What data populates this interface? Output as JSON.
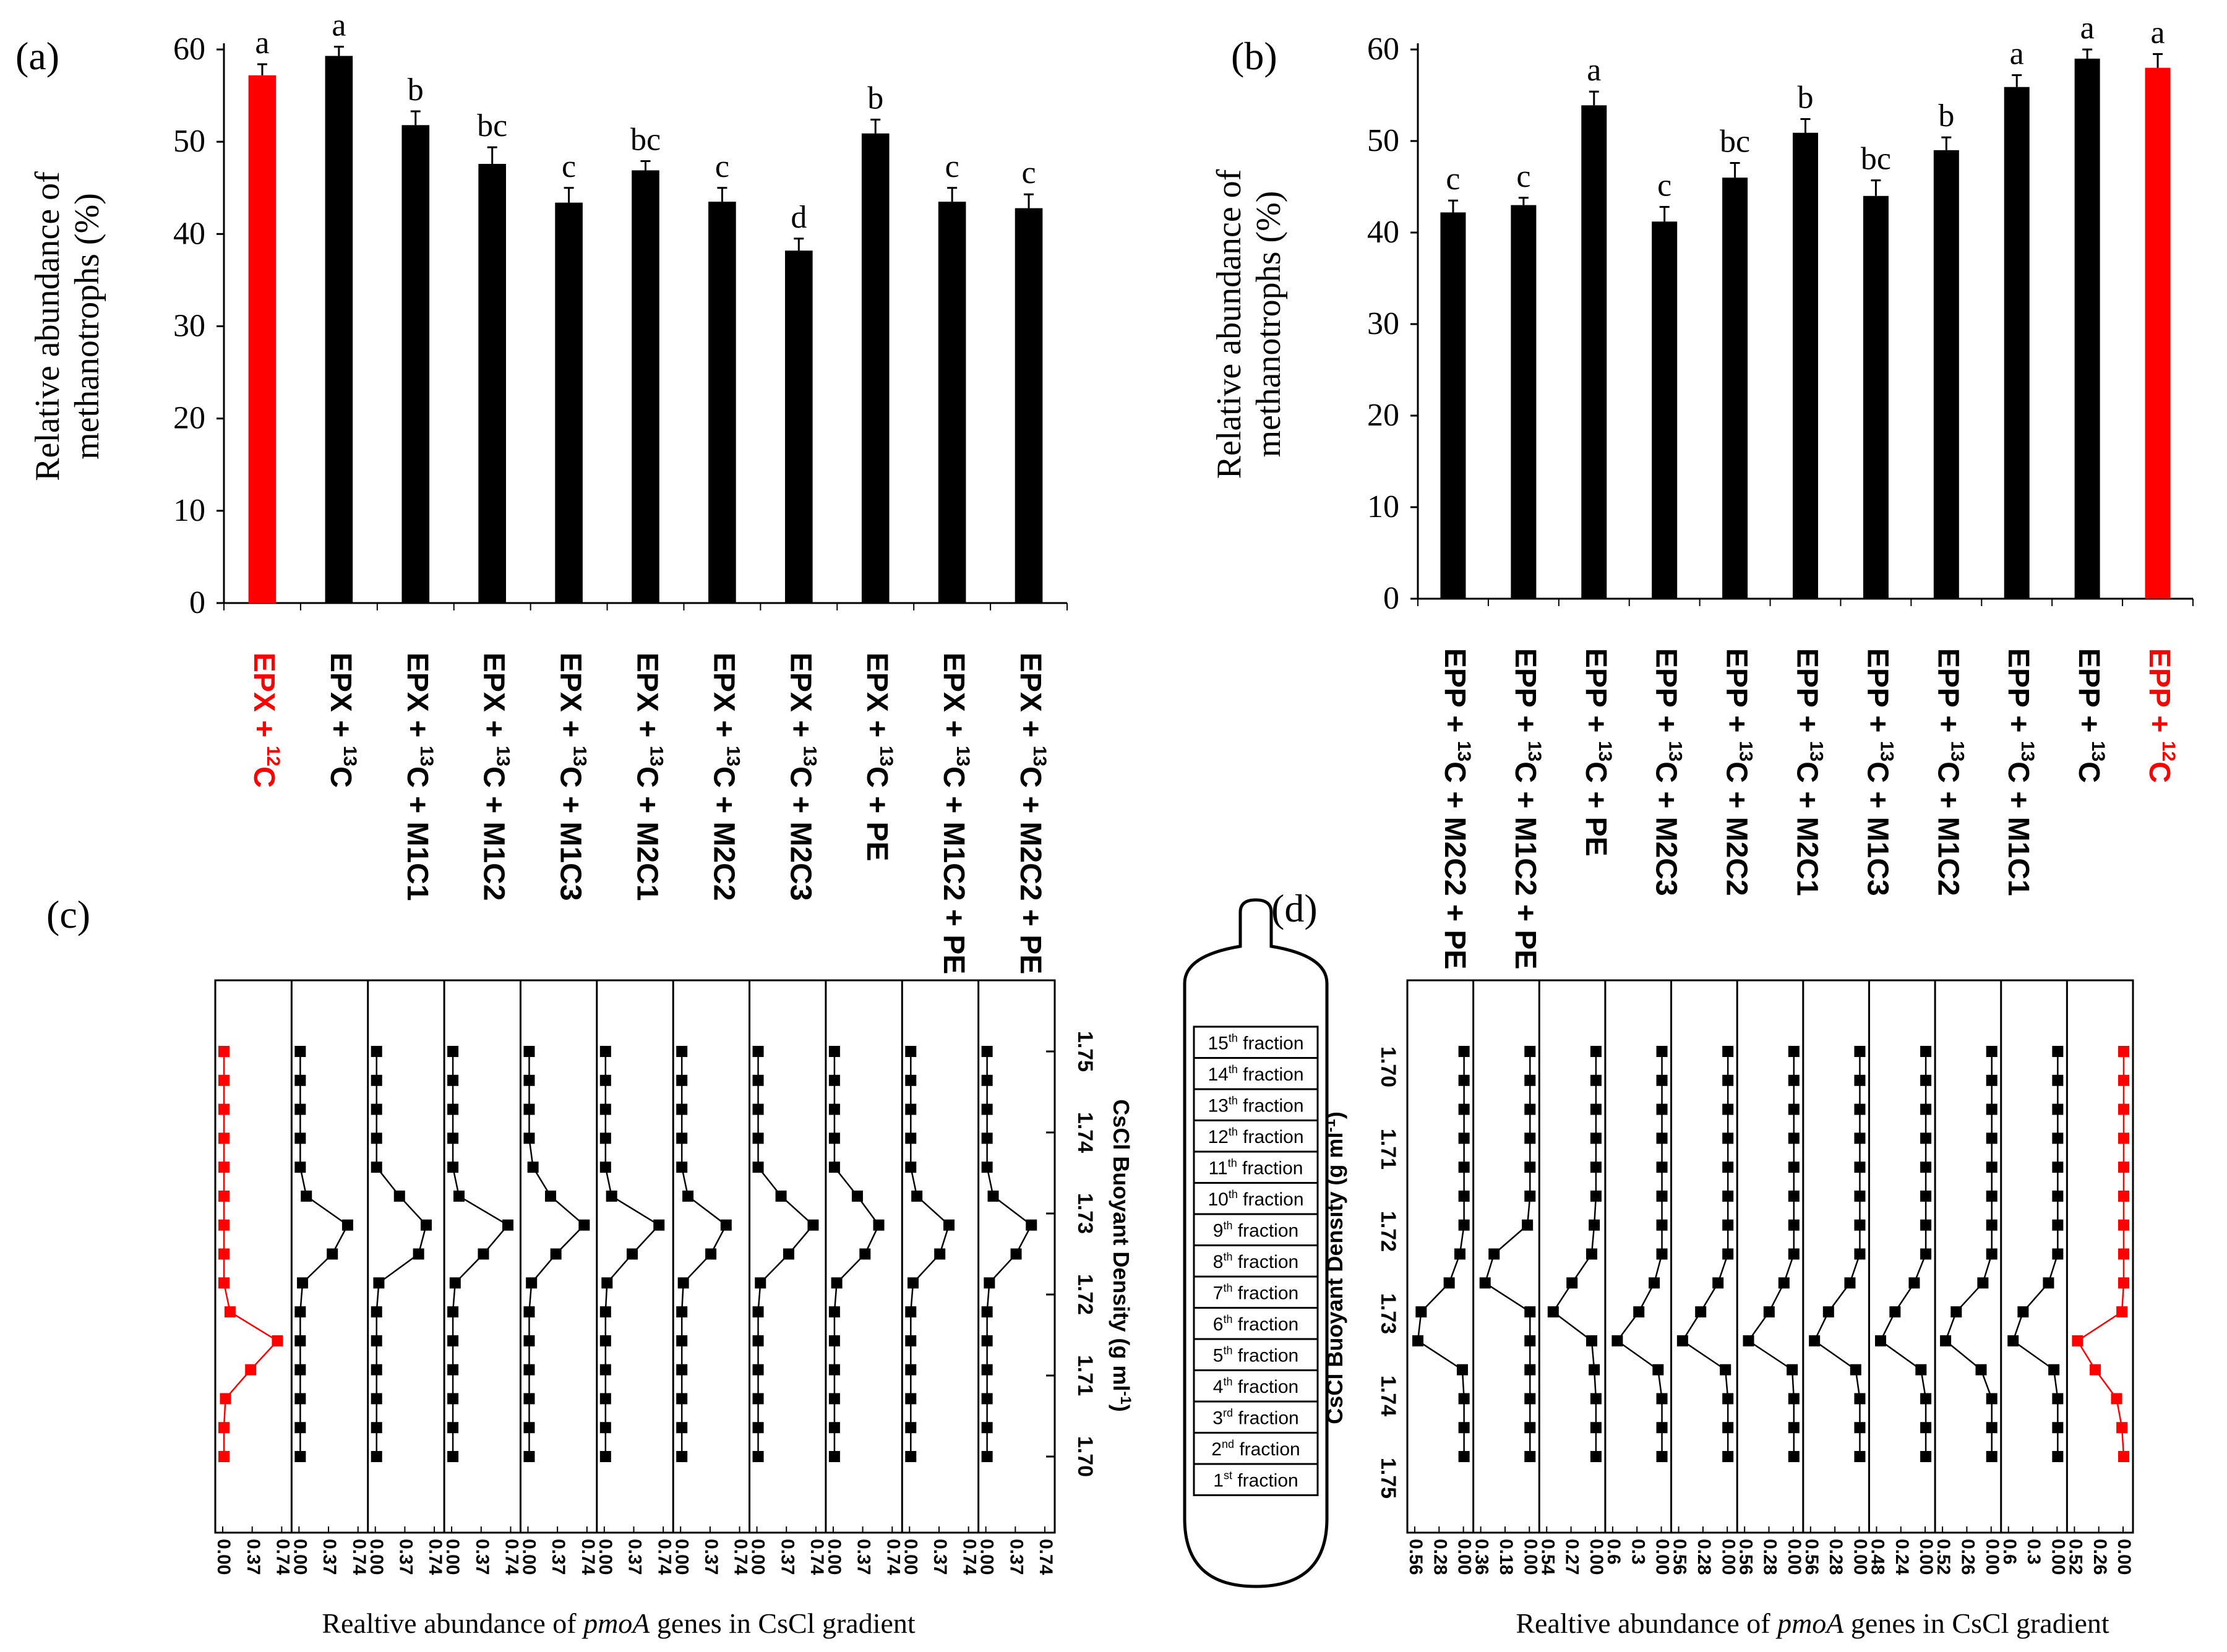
{
  "colors": {
    "highlight": "#ff0000",
    "bar": "#000000",
    "line": "#000000"
  },
  "panel_labels": [
    "(a)",
    "(b)",
    "(c)",
    "(d)"
  ],
  "chart_data": [
    {
      "type": "bar",
      "panel": "(a)",
      "ylabel_line1": "Relative  abundance of",
      "ylabel_line2": "methanotrophs (%)",
      "ylim": [
        0,
        60
      ],
      "yticks": [
        0,
        10,
        20,
        30,
        40,
        50,
        60
      ],
      "categories": [
        "EPX + 12C",
        "EPX + 13C",
        "EPX + 13C + M1C1",
        "EPX + 13C + M1C2",
        "EPX + 13C + M1C3",
        "EPX + 13C + M2C1",
        "EPX + 13C + M2C2",
        "EPX + 13C + M2C3",
        "EPX + 13C + PE",
        "EPX + 13C + M1C2 + PE",
        "EPX + 13C + M2C2 + PE"
      ],
      "values": [
        57.2,
        59.3,
        51.8,
        47.6,
        43.4,
        46.9,
        43.5,
        38.2,
        50.9,
        43.5,
        42.8
      ],
      "errors": [
        1.2,
        1.0,
        1.5,
        1.8,
        1.6,
        1.0,
        1.5,
        1.3,
        1.5,
        1.5,
        1.5
      ],
      "letters": [
        "a",
        "a",
        "b",
        "bc",
        "c",
        "bc",
        "c",
        "d",
        "b",
        "c",
        "c"
      ],
      "highlight_index": 0
    },
    {
      "type": "bar",
      "panel": "(b)",
      "ylabel_line1": "Relative  abundance of",
      "ylabel_line2": "methanotrophs (%)",
      "ylim": [
        0,
        60
      ],
      "yticks": [
        0,
        10,
        20,
        30,
        40,
        50,
        60
      ],
      "categories": [
        "EPP + 13C + M2C2 + PE",
        "EPP + 13C + M1C2 + PE",
        "EPP + 13C + PE",
        "EPP + 13C + M2C3",
        "EPP + 13C + M2C2",
        "EPP + 13C + M2C1",
        "EPP + 13C + M1C3",
        "EPP + 13C + M1C2",
        "EPP + 13C + M1C1",
        "EPP + 13C",
        "EPP + 12C"
      ],
      "values": [
        42.2,
        43.0,
        53.9,
        41.2,
        46.0,
        50.9,
        44.0,
        49.0,
        55.9,
        59.0,
        58.0
      ],
      "errors": [
        1.3,
        0.8,
        1.5,
        1.6,
        1.6,
        1.5,
        1.7,
        1.4,
        1.3,
        1.0,
        1.5
      ],
      "letters": [
        "c",
        "c",
        "a",
        "c",
        "bc",
        "b",
        "bc",
        "b",
        "a",
        "a",
        "a"
      ],
      "highlight_index": 10
    },
    {
      "type": "line",
      "panel": "(c)",
      "xlabel_pre": "Realtive abundance of ",
      "xlabel_italic": "pmoA",
      "xlabel_post": " genes in CsCl gradient",
      "ylabel": "CsCl Buoyant Density (g ml",
      "ylabel_sup": "-1",
      "ylabel_end": ")",
      "ylim": [
        1.7,
        1.75
      ],
      "density_ticks": [
        "1.75",
        "1.74",
        "1.73",
        "1.72",
        "1.71",
        "1.70"
      ],
      "subplot_xticks": [
        [
          "0.00",
          "0.37",
          "0.74"
        ],
        [
          "0.00",
          "0.37",
          "0.74"
        ],
        [
          "0.00",
          "0.37",
          "0.74"
        ],
        [
          "0.00",
          "0.37",
          "0.74"
        ],
        [
          "0.00",
          "0.37",
          "0.74"
        ],
        [
          "0.00",
          "0.37",
          "0.74"
        ],
        [
          "0.00",
          "0.37",
          "0.74"
        ],
        [
          "0.00",
          "0.37",
          "0.74"
        ],
        [
          "0.00",
          "0.37",
          "0.74"
        ],
        [
          "0.00",
          "0.37",
          "0.74"
        ],
        [
          "0.00",
          "0.37",
          "0.74"
        ]
      ],
      "xmax": 0.74,
      "series": [
        {
          "values": [
            0,
            0,
            0,
            0,
            0,
            0,
            0,
            0,
            0,
            0.08,
            0.7,
            0.35,
            0.02,
            0,
            0
          ],
          "highlight": true
        },
        {
          "values": [
            0,
            0,
            0,
            0,
            0,
            0.08,
            0.62,
            0.42,
            0.03,
            0,
            0,
            0,
            0,
            0,
            0
          ]
        },
        {
          "values": [
            0,
            0,
            0,
            0,
            0,
            0.3,
            0.65,
            0.55,
            0.03,
            0,
            0,
            0,
            0,
            0,
            0
          ]
        },
        {
          "values": [
            0,
            0,
            0,
            0,
            0,
            0.08,
            0.72,
            0.4,
            0.03,
            0,
            0,
            0,
            0,
            0,
            0
          ]
        },
        {
          "values": [
            0,
            0,
            0,
            0,
            0.05,
            0.28,
            0.72,
            0.35,
            0.03,
            0,
            0,
            0,
            0,
            0,
            0
          ]
        },
        {
          "values": [
            0,
            0,
            0,
            0,
            0,
            0.08,
            0.7,
            0.35,
            0.02,
            0,
            0,
            0,
            0,
            0,
            0
          ]
        },
        {
          "values": [
            0,
            0,
            0,
            0,
            0,
            0.08,
            0.58,
            0.38,
            0.02,
            0,
            0,
            0,
            0,
            0,
            0
          ]
        },
        {
          "values": [
            0,
            0,
            0,
            0,
            0,
            0.3,
            0.72,
            0.4,
            0.03,
            0,
            0,
            0,
            0,
            0,
            0
          ]
        },
        {
          "values": [
            0,
            0,
            0,
            0,
            0,
            0.3,
            0.58,
            0.4,
            0.03,
            0,
            0,
            0,
            0,
            0,
            0
          ]
        },
        {
          "values": [
            0,
            0,
            0,
            0,
            0,
            0.08,
            0.5,
            0.38,
            0.03,
            0,
            0,
            0,
            0,
            0,
            0
          ]
        },
        {
          "values": [
            0,
            0,
            0,
            0,
            0,
            0.08,
            0.58,
            0.38,
            0.03,
            0,
            0,
            0,
            0,
            0,
            0
          ]
        }
      ]
    },
    {
      "type": "line",
      "panel": "(d)",
      "xlabel_pre": "Realtive abundance of ",
      "xlabel_italic": "pmoA",
      "xlabel_post": " genes in CsCl gradient",
      "ylabel": "CsCl Buoyant Density (g ml",
      "ylabel_sup": "-1",
      "ylabel_end": ")",
      "ylim": [
        1.7,
        1.75
      ],
      "density_ticks": [
        "1.70",
        "1.71",
        "1.72",
        "1.73",
        "1.74",
        "1.75"
      ],
      "subplot_xticks": [
        [
          "0.56",
          "0.28",
          "0.00"
        ],
        [
          "0.36",
          "0.18",
          "0.00"
        ],
        [
          "0.54",
          "0.27",
          "0.00"
        ],
        [
          "0.6",
          "0.3",
          "0.00"
        ],
        [
          "0.56",
          "0.28",
          "0.00"
        ],
        [
          "0.56",
          "0.28",
          "0.00"
        ],
        [
          "0.56",
          "0.28",
          "0.00"
        ],
        [
          "0.48",
          "0.24",
          "0.00"
        ],
        [
          "0.52",
          "0.26",
          "0.00"
        ],
        [
          "0.6",
          "0.3",
          "0.00"
        ],
        [
          "0.52",
          "0.26",
          "0.00"
        ]
      ],
      "series": [
        {
          "max": 0.56,
          "values": [
            0,
            0,
            0,
            0,
            0,
            0,
            0,
            0.05,
            0.18,
            0.52,
            0.56,
            0.02,
            0,
            0,
            0
          ]
        },
        {
          "max": 0.36,
          "values": [
            0,
            0,
            0,
            0,
            0,
            0,
            0.02,
            0.28,
            0.35,
            0.0,
            0,
            0,
            0,
            0,
            0
          ]
        },
        {
          "max": 0.54,
          "values": [
            0,
            0,
            0,
            0,
            0,
            0,
            0.02,
            0.05,
            0.28,
            0.5,
            0.05,
            0.02,
            0,
            0,
            0
          ]
        },
        {
          "max": 0.6,
          "values": [
            0,
            0,
            0,
            0,
            0,
            0,
            0,
            0,
            0.1,
            0.3,
            0.58,
            0.05,
            0,
            0,
            0
          ]
        },
        {
          "max": 0.56,
          "values": [
            0,
            0,
            0,
            0,
            0,
            0,
            0,
            0,
            0.12,
            0.33,
            0.55,
            0.03,
            0,
            0,
            0
          ]
        },
        {
          "max": 0.56,
          "values": [
            0,
            0,
            0,
            0,
            0,
            0,
            0,
            0,
            0.12,
            0.3,
            0.55,
            0.02,
            0,
            0,
            0
          ]
        },
        {
          "max": 0.56,
          "values": [
            0,
            0,
            0,
            0,
            0,
            0,
            0,
            0,
            0.12,
            0.38,
            0.55,
            0.05,
            0,
            0,
            0
          ]
        },
        {
          "max": 0.48,
          "values": [
            0,
            0,
            0,
            0,
            0,
            0,
            0,
            0,
            0.12,
            0.32,
            0.47,
            0.05,
            0,
            0,
            0
          ]
        },
        {
          "max": 0.52,
          "values": [
            0,
            0,
            0,
            0,
            0,
            0,
            0,
            0,
            0.1,
            0.4,
            0.52,
            0.12,
            0,
            0,
            0
          ]
        },
        {
          "max": 0.6,
          "values": [
            0,
            0,
            0,
            0,
            0,
            0,
            0,
            0,
            0.12,
            0.45,
            0.58,
            0.05,
            0,
            0,
            0
          ]
        },
        {
          "max": 0.52,
          "values": [
            0,
            0,
            0,
            0,
            0,
            0,
            0,
            0,
            0,
            0.02,
            0.52,
            0.32,
            0.08,
            0.02,
            0
          ],
          "highlight": true
        }
      ]
    }
  ],
  "tube": {
    "fractions": [
      {
        "num": "15",
        "sup": "th",
        "word": " fraction"
      },
      {
        "num": "14",
        "sup": "th",
        "word": " fraction"
      },
      {
        "num": "13",
        "sup": "th",
        "word": " fraction"
      },
      {
        "num": "12",
        "sup": "th",
        "word": " fraction"
      },
      {
        "num": "11",
        "sup": "th",
        "word": " fraction"
      },
      {
        "num": "10",
        "sup": "th",
        "word": " fraction"
      },
      {
        "num": "9",
        "sup": "th",
        "word": " fraction"
      },
      {
        "num": "8",
        "sup": "th",
        "word": " fraction"
      },
      {
        "num": "7",
        "sup": "th",
        "word": " fraction"
      },
      {
        "num": "6",
        "sup": "th",
        "word": " fraction"
      },
      {
        "num": "5",
        "sup": "th",
        "word": " fraction"
      },
      {
        "num": "4",
        "sup": "th",
        "word": " fraction"
      },
      {
        "num": "3",
        "sup": "rd",
        "word": " fraction"
      },
      {
        "num": "2",
        "sup": "nd",
        "word": " fraction"
      },
      {
        "num": "1",
        "sup": "st",
        "word": " fraction"
      }
    ]
  }
}
